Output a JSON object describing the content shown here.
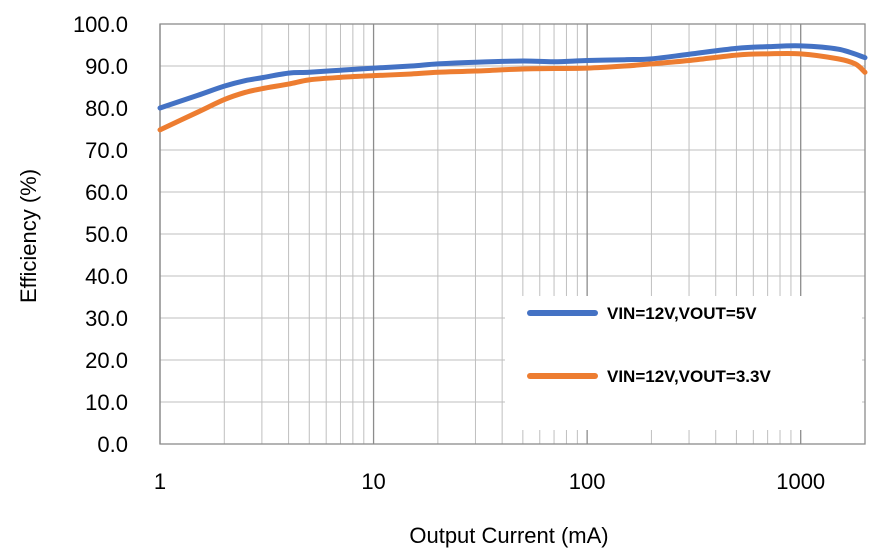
{
  "chart_data": {
    "type": "line",
    "title": "",
    "xlabel": "Output Current (mA)",
    "ylabel": "Efficiency (%)",
    "x_scale": "log",
    "xlim": [
      1,
      2000
    ],
    "ylim": [
      0,
      100
    ],
    "x_ticks": [
      1,
      10,
      100,
      1000
    ],
    "x_tick_labels": [
      "1",
      "10",
      "100",
      "1000"
    ],
    "y_ticks": [
      0,
      10,
      20,
      30,
      40,
      50,
      60,
      70,
      80,
      90,
      100
    ],
    "y_tick_labels": [
      "0.0",
      "10.0",
      "20.0",
      "30.0",
      "40.0",
      "50.0",
      "60.0",
      "70.0",
      "80.0",
      "90.0",
      "100.0"
    ],
    "grid": true,
    "legend_position": "lower-right",
    "series": [
      {
        "name": "VIN=12V,VOUT=5V",
        "color": "#4472C4",
        "x": [
          1,
          1.5,
          2,
          2.5,
          3,
          4,
          5,
          7,
          10,
          15,
          20,
          30,
          50,
          70,
          100,
          150,
          200,
          300,
          500,
          700,
          1000,
          1500,
          2000
        ],
        "y": [
          80.0,
          83.0,
          85.2,
          86.5,
          87.2,
          88.3,
          88.5,
          89.0,
          89.5,
          90.0,
          90.5,
          90.9,
          91.2,
          91.0,
          91.3,
          91.5,
          91.7,
          92.8,
          94.2,
          94.6,
          94.8,
          94.0,
          92.0
        ]
      },
      {
        "name": "VIN=12V,VOUT=3.3V",
        "color": "#ED7D31",
        "x": [
          1,
          1.5,
          2,
          2.5,
          3,
          4,
          5,
          7,
          10,
          15,
          20,
          30,
          50,
          70,
          100,
          150,
          200,
          300,
          500,
          700,
          1000,
          1500,
          1800,
          2000
        ],
        "y": [
          74.8,
          79.0,
          82.0,
          83.7,
          84.6,
          85.7,
          86.7,
          87.3,
          87.7,
          88.1,
          88.5,
          88.8,
          89.3,
          89.4,
          89.5,
          90.0,
          90.5,
          91.3,
          92.6,
          92.9,
          92.9,
          91.7,
          90.5,
          88.5
        ]
      }
    ]
  }
}
